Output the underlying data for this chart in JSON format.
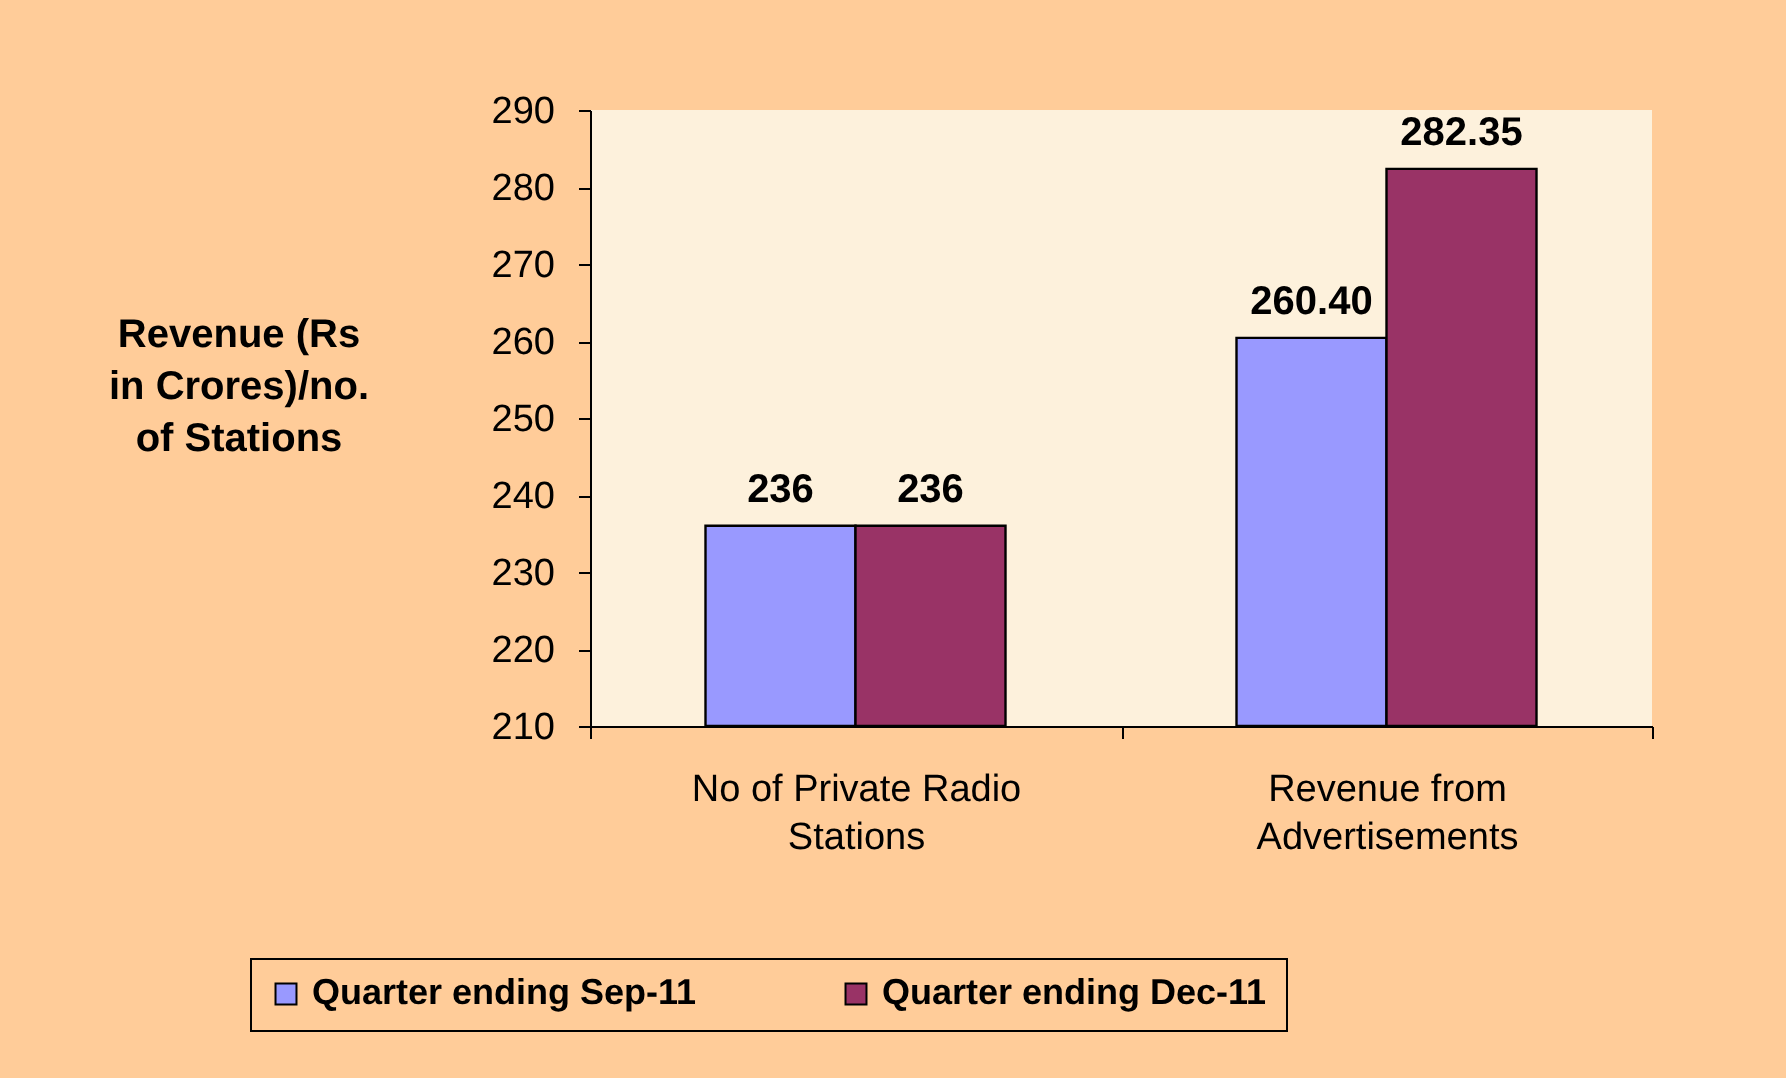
{
  "chart_data": {
    "type": "bar",
    "ylabel": "Revenue (Rs in Crores)/no. of Stations",
    "categories": [
      "No of Private Radio Stations",
      "Revenue from Advertisements"
    ],
    "series": [
      {
        "name": "Quarter ending Sep-11",
        "color": "#9999ff",
        "values": [
          236,
          260.4
        ],
        "value_labels": [
          "236",
          "260.40"
        ]
      },
      {
        "name": "Quarter ending Dec-11",
        "color": "#993366",
        "values": [
          236,
          282.35
        ],
        "value_labels": [
          "236",
          "282.35"
        ]
      }
    ],
    "ylim": [
      210,
      290
    ],
    "yticks": [
      210,
      220,
      230,
      240,
      250,
      260,
      270,
      280,
      290
    ],
    "legend": "bottom",
    "grid": false
  }
}
